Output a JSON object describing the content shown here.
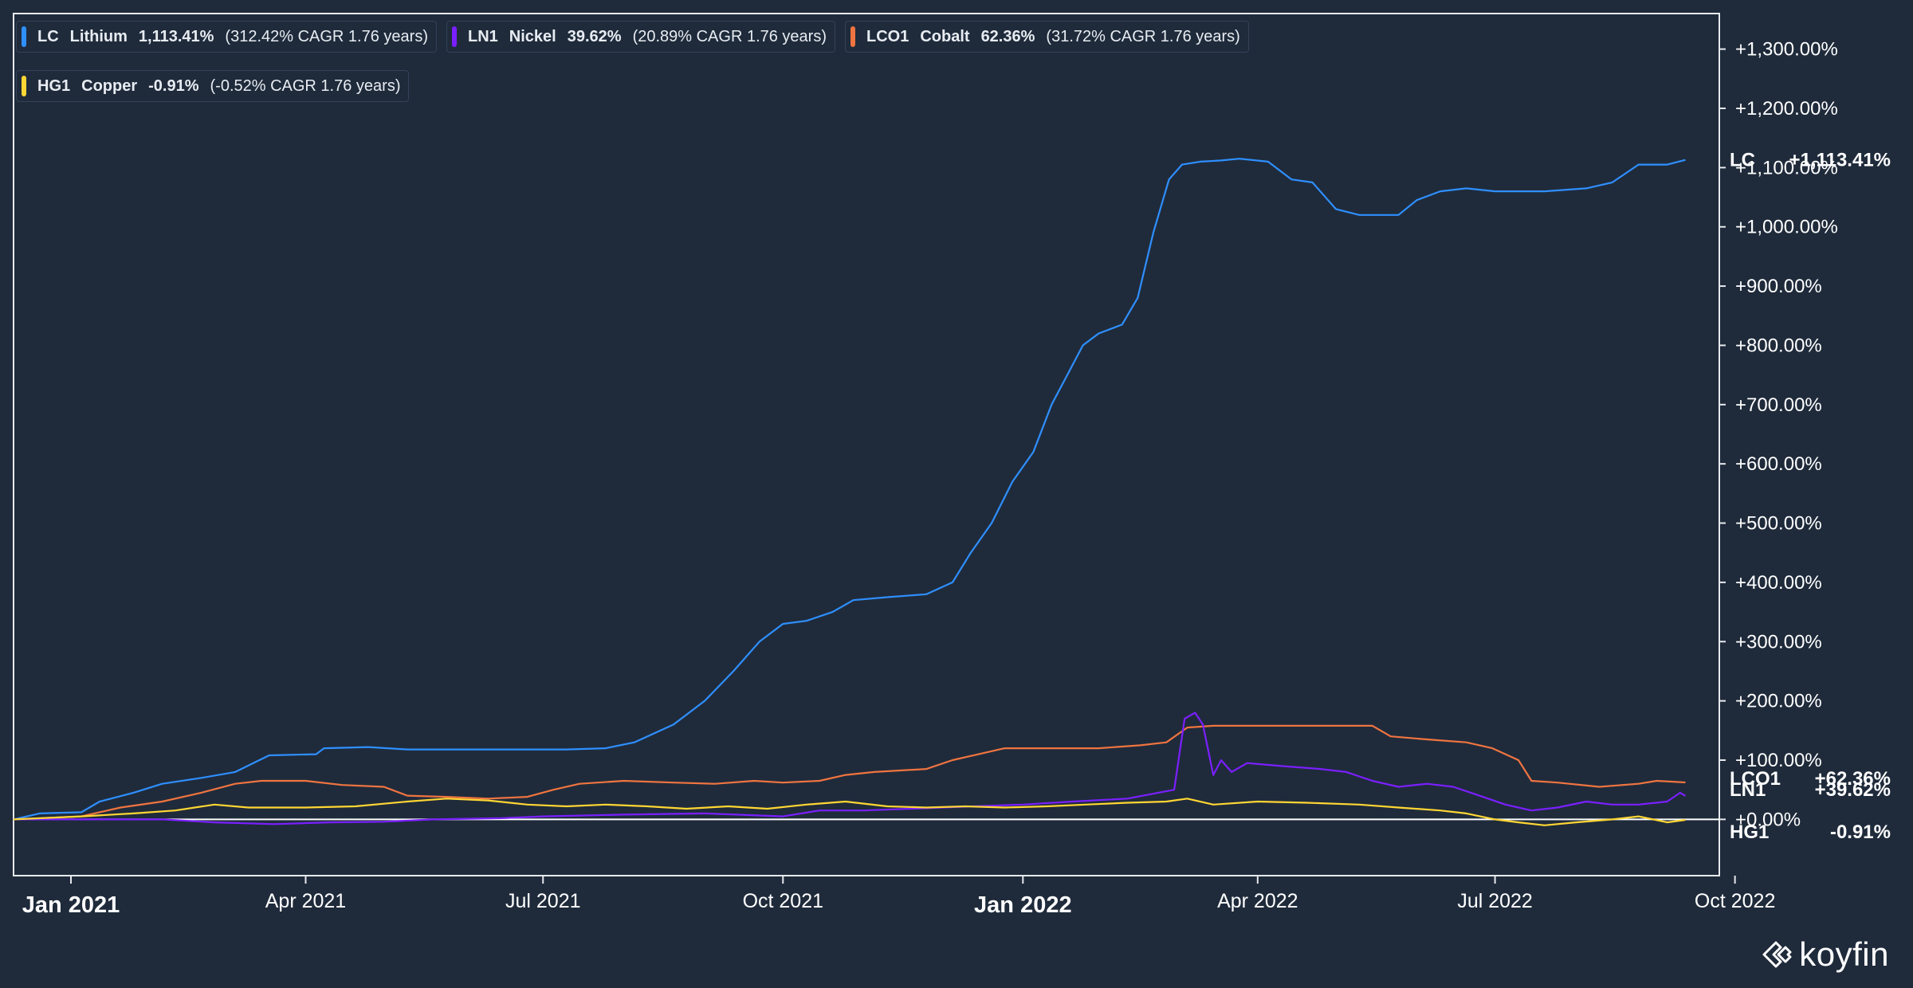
{
  "legend": [
    {
      "symbol": "LC",
      "name": "Lithium",
      "value": "1,113.41%",
      "cagr": "(312.42% CAGR 1.76 years)",
      "color": "#2f8fff"
    },
    {
      "symbol": "LN1",
      "name": "Nickel",
      "value": "39.62%",
      "cagr": "(20.89% CAGR 1.76 years)",
      "color": "#7b1fff"
    },
    {
      "symbol": "LCO1",
      "name": "Cobalt",
      "value": "62.36%",
      "cagr": "(31.72% CAGR 1.76 years)",
      "color": "#f07440"
    },
    {
      "symbol": "HG1",
      "name": "Copper",
      "value": "-0.91%",
      "cagr": "(-0.52% CAGR 1.76 years)",
      "color": "#ffd633"
    }
  ],
  "logo": {
    "text": "koyfin"
  },
  "chart_data": {
    "type": "line",
    "title": "",
    "xlabel": "",
    "ylabel": "",
    "x_range": [
      "2020-12-10",
      "2022-09-25"
    ],
    "ylim": [
      -95,
      1360
    ],
    "y_ticks": [
      {
        "value": 0,
        "label": "+0.00%"
      },
      {
        "value": 100,
        "label": "+100.00%"
      },
      {
        "value": 200,
        "label": "+200.00%"
      },
      {
        "value": 300,
        "label": "+300.00%"
      },
      {
        "value": 400,
        "label": "+400.00%"
      },
      {
        "value": 500,
        "label": "+500.00%"
      },
      {
        "value": 600,
        "label": "+600.00%"
      },
      {
        "value": 700,
        "label": "+700.00%"
      },
      {
        "value": 800,
        "label": "+800.00%"
      },
      {
        "value": 900,
        "label": "+900.00%"
      },
      {
        "value": 1000,
        "label": "+1,000.00%"
      },
      {
        "value": 1100,
        "label": "+1,100.00%"
      },
      {
        "value": 1200,
        "label": "+1,200.00%"
      },
      {
        "value": 1300,
        "label": "+1,300.00%"
      }
    ],
    "x_ticks": [
      {
        "date": "2021-01-01",
        "label": "Jan 2021",
        "major": true
      },
      {
        "date": "2021-04-01",
        "label": "Apr 2021",
        "major": false
      },
      {
        "date": "2021-07-01",
        "label": "Jul 2021",
        "major": false
      },
      {
        "date": "2021-10-01",
        "label": "Oct 2021",
        "major": false
      },
      {
        "date": "2022-01-01",
        "label": "Jan 2022",
        "major": true
      },
      {
        "date": "2022-04-01",
        "label": "Apr 2022",
        "major": false
      },
      {
        "date": "2022-07-01",
        "label": "Jul 2022",
        "major": false
      },
      {
        "date": "2022-10-01",
        "label": "Oct 2022",
        "major": false
      }
    ],
    "end_labels": [
      {
        "symbol": "LC",
        "value": "+1,113.41%",
        "y": 1113.41
      },
      {
        "symbol": "LCO1",
        "value": "+62.36%",
        "y": 62.36
      },
      {
        "symbol": "LN1",
        "value": "+39.62%",
        "y": 39.62
      },
      {
        "symbol": "HG1",
        "value": "-0.91%",
        "y": -0.91
      }
    ],
    "series": [
      {
        "name": "LC",
        "color": "#2f8fff",
        "points": [
          [
            "2020-12-10",
            0
          ],
          [
            "2020-12-20",
            10
          ],
          [
            "2021-01-05",
            12
          ],
          [
            "2021-01-12",
            30
          ],
          [
            "2021-01-25",
            45
          ],
          [
            "2021-02-05",
            60
          ],
          [
            "2021-02-20",
            70
          ],
          [
            "2021-03-05",
            80
          ],
          [
            "2021-03-18",
            108
          ],
          [
            "2021-04-05",
            110
          ],
          [
            "2021-04-08",
            120
          ],
          [
            "2021-04-25",
            122
          ],
          [
            "2021-05-10",
            118
          ],
          [
            "2021-06-01",
            118
          ],
          [
            "2021-06-20",
            118
          ],
          [
            "2021-07-10",
            118
          ],
          [
            "2021-07-25",
            120
          ],
          [
            "2021-08-05",
            130
          ],
          [
            "2021-08-20",
            160
          ],
          [
            "2021-09-01",
            200
          ],
          [
            "2021-09-12",
            250
          ],
          [
            "2021-09-22",
            300
          ],
          [
            "2021-10-01",
            330
          ],
          [
            "2021-10-10",
            335
          ],
          [
            "2021-10-20",
            350
          ],
          [
            "2021-10-28",
            370
          ],
          [
            "2021-11-10",
            375
          ],
          [
            "2021-11-25",
            380
          ],
          [
            "2021-12-05",
            400
          ],
          [
            "2021-12-12",
            450
          ],
          [
            "2021-12-20",
            500
          ],
          [
            "2021-12-28",
            570
          ],
          [
            "2022-01-05",
            620
          ],
          [
            "2022-01-12",
            700
          ],
          [
            "2022-01-18",
            750
          ],
          [
            "2022-01-24",
            800
          ],
          [
            "2022-01-30",
            820
          ],
          [
            "2022-02-08",
            835
          ],
          [
            "2022-02-14",
            880
          ],
          [
            "2022-02-20",
            990
          ],
          [
            "2022-02-26",
            1080
          ],
          [
            "2022-03-03",
            1105
          ],
          [
            "2022-03-10",
            1110
          ],
          [
            "2022-03-18",
            1112
          ],
          [
            "2022-03-25",
            1115
          ],
          [
            "2022-04-05",
            1110
          ],
          [
            "2022-04-14",
            1080
          ],
          [
            "2022-04-22",
            1075
          ],
          [
            "2022-05-01",
            1030
          ],
          [
            "2022-05-10",
            1020
          ],
          [
            "2022-05-25",
            1020
          ],
          [
            "2022-06-01",
            1045
          ],
          [
            "2022-06-10",
            1060
          ],
          [
            "2022-06-20",
            1065
          ],
          [
            "2022-07-01",
            1060
          ],
          [
            "2022-07-20",
            1060
          ],
          [
            "2022-08-05",
            1065
          ],
          [
            "2022-08-15",
            1075
          ],
          [
            "2022-08-25",
            1105
          ],
          [
            "2022-09-05",
            1105
          ],
          [
            "2022-09-12",
            1113
          ]
        ]
      },
      {
        "name": "LCO1",
        "color": "#f07440",
        "points": [
          [
            "2020-12-10",
            0
          ],
          [
            "2021-01-05",
            5
          ],
          [
            "2021-01-20",
            20
          ],
          [
            "2021-02-05",
            30
          ],
          [
            "2021-02-20",
            45
          ],
          [
            "2021-03-05",
            60
          ],
          [
            "2021-03-15",
            65
          ],
          [
            "2021-04-01",
            65
          ],
          [
            "2021-04-15",
            58
          ],
          [
            "2021-05-01",
            55
          ],
          [
            "2021-05-10",
            40
          ],
          [
            "2021-05-25",
            38
          ],
          [
            "2021-06-10",
            35
          ],
          [
            "2021-06-25",
            38
          ],
          [
            "2021-07-05",
            50
          ],
          [
            "2021-07-15",
            60
          ],
          [
            "2021-08-01",
            65
          ],
          [
            "2021-08-20",
            62
          ],
          [
            "2021-09-05",
            60
          ],
          [
            "2021-09-20",
            65
          ],
          [
            "2021-10-01",
            62
          ],
          [
            "2021-10-15",
            65
          ],
          [
            "2021-10-25",
            75
          ],
          [
            "2021-11-05",
            80
          ],
          [
            "2021-11-25",
            85
          ],
          [
            "2021-12-05",
            100
          ],
          [
            "2021-12-15",
            110
          ],
          [
            "2021-12-25",
            120
          ],
          [
            "2022-01-10",
            120
          ],
          [
            "2022-01-30",
            120
          ],
          [
            "2022-02-15",
            125
          ],
          [
            "2022-02-25",
            130
          ],
          [
            "2022-03-05",
            155
          ],
          [
            "2022-03-15",
            158
          ],
          [
            "2022-04-01",
            158
          ],
          [
            "2022-05-15",
            158
          ],
          [
            "2022-05-22",
            140
          ],
          [
            "2022-06-05",
            135
          ],
          [
            "2022-06-20",
            130
          ],
          [
            "2022-06-30",
            120
          ],
          [
            "2022-07-10",
            100
          ],
          [
            "2022-07-15",
            65
          ],
          [
            "2022-07-25",
            62
          ],
          [
            "2022-08-10",
            55
          ],
          [
            "2022-08-25",
            60
          ],
          [
            "2022-09-01",
            65
          ],
          [
            "2022-09-12",
            62.36
          ]
        ]
      },
      {
        "name": "LN1",
        "color": "#7b1fff",
        "points": [
          [
            "2020-12-10",
            0
          ],
          [
            "2021-01-15",
            0
          ],
          [
            "2021-02-05",
            0
          ],
          [
            "2021-02-25",
            -5
          ],
          [
            "2021-03-20",
            -8
          ],
          [
            "2021-04-10",
            -5
          ],
          [
            "2021-05-01",
            -4
          ],
          [
            "2021-05-20",
            0
          ],
          [
            "2021-06-15",
            2
          ],
          [
            "2021-07-01",
            5
          ],
          [
            "2021-08-01",
            8
          ],
          [
            "2021-09-01",
            10
          ],
          [
            "2021-10-01",
            5
          ],
          [
            "2021-10-15",
            15
          ],
          [
            "2021-11-01",
            15
          ],
          [
            "2021-12-01",
            20
          ],
          [
            "2022-01-01",
            25
          ],
          [
            "2022-01-20",
            30
          ],
          [
            "2022-02-10",
            35
          ],
          [
            "2022-02-28",
            50
          ],
          [
            "2022-03-04",
            170
          ],
          [
            "2022-03-08",
            180
          ],
          [
            "2022-03-11",
            160
          ],
          [
            "2022-03-15",
            75
          ],
          [
            "2022-03-18",
            100
          ],
          [
            "2022-03-22",
            80
          ],
          [
            "2022-03-28",
            95
          ],
          [
            "2022-04-10",
            90
          ],
          [
            "2022-04-25",
            85
          ],
          [
            "2022-05-05",
            80
          ],
          [
            "2022-05-15",
            65
          ],
          [
            "2022-05-25",
            55
          ],
          [
            "2022-06-05",
            60
          ],
          [
            "2022-06-15",
            55
          ],
          [
            "2022-06-25",
            40
          ],
          [
            "2022-07-05",
            25
          ],
          [
            "2022-07-15",
            15
          ],
          [
            "2022-07-25",
            20
          ],
          [
            "2022-08-05",
            30
          ],
          [
            "2022-08-15",
            25
          ],
          [
            "2022-08-25",
            25
          ],
          [
            "2022-09-05",
            30
          ],
          [
            "2022-09-10",
            45
          ],
          [
            "2022-09-12",
            39.62
          ]
        ]
      },
      {
        "name": "HG1",
        "color": "#ffd633",
        "points": [
          [
            "2020-12-10",
            0
          ],
          [
            "2021-01-05",
            5
          ],
          [
            "2021-01-25",
            10
          ],
          [
            "2021-02-10",
            15
          ],
          [
            "2021-02-25",
            25
          ],
          [
            "2021-03-10",
            20
          ],
          [
            "2021-04-01",
            20
          ],
          [
            "2021-04-20",
            22
          ],
          [
            "2021-05-10",
            30
          ],
          [
            "2021-05-25",
            35
          ],
          [
            "2021-06-10",
            32
          ],
          [
            "2021-06-25",
            25
          ],
          [
            "2021-07-10",
            22
          ],
          [
            "2021-07-25",
            25
          ],
          [
            "2021-08-10",
            22
          ],
          [
            "2021-08-25",
            18
          ],
          [
            "2021-09-10",
            22
          ],
          [
            "2021-09-25",
            18
          ],
          [
            "2021-10-10",
            25
          ],
          [
            "2021-10-25",
            30
          ],
          [
            "2021-11-10",
            22
          ],
          [
            "2021-11-25",
            20
          ],
          [
            "2021-12-10",
            22
          ],
          [
            "2021-12-25",
            20
          ],
          [
            "2022-01-10",
            22
          ],
          [
            "2022-01-25",
            25
          ],
          [
            "2022-02-10",
            28
          ],
          [
            "2022-02-25",
            30
          ],
          [
            "2022-03-05",
            35
          ],
          [
            "2022-03-15",
            25
          ],
          [
            "2022-04-01",
            30
          ],
          [
            "2022-04-20",
            28
          ],
          [
            "2022-05-10",
            25
          ],
          [
            "2022-05-25",
            20
          ],
          [
            "2022-06-10",
            15
          ],
          [
            "2022-06-20",
            10
          ],
          [
            "2022-07-01",
            0
          ],
          [
            "2022-07-10",
            -5
          ],
          [
            "2022-07-20",
            -10
          ],
          [
            "2022-08-01",
            -5
          ],
          [
            "2022-08-15",
            0
          ],
          [
            "2022-08-25",
            5
          ],
          [
            "2022-09-05",
            -5
          ],
          [
            "2022-09-12",
            -0.91
          ]
        ]
      }
    ]
  }
}
